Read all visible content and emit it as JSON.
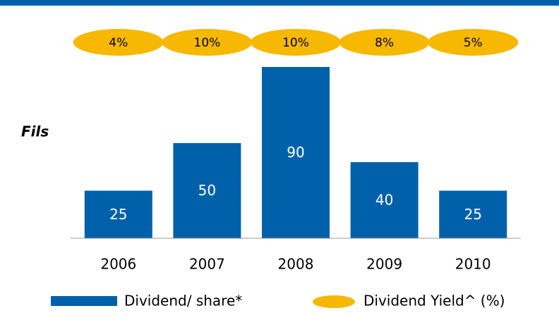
{
  "chart_data": {
    "type": "bar",
    "y_label": "Fils",
    "categories": [
      "2006",
      "2007",
      "2008",
      "2009",
      "2010"
    ],
    "ylim": [
      0,
      90
    ],
    "series": [
      {
        "name": "Dividend/ share*",
        "color": "#0061aa",
        "values": [
          25,
          50,
          90,
          40,
          25
        ]
      },
      {
        "name": "Dividend Yield^ (%)",
        "color": "#f6b800",
        "values": [
          4,
          10,
          10,
          8,
          5
        ],
        "value_labels": [
          "4%",
          "10%",
          "10%",
          "8%",
          "5%"
        ]
      }
    ]
  }
}
